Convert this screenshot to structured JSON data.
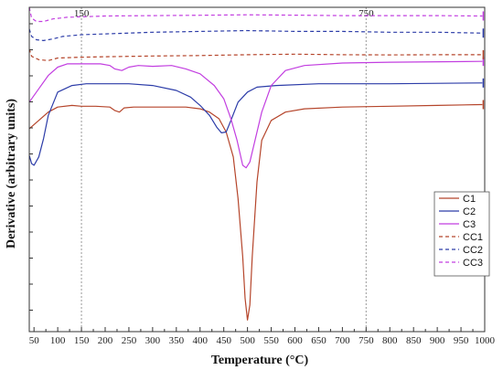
{
  "chart_data": {
    "type": "line",
    "title": "",
    "xlabel": "Temperature (°C)",
    "ylabel": "Derivative (arbitrary units)",
    "xlim": [
      40,
      1000
    ],
    "ylim": [
      -1.0,
      0.95
    ],
    "x_ticks": [
      50,
      100,
      150,
      200,
      250,
      300,
      350,
      400,
      450,
      500,
      550,
      600,
      650,
      700,
      750,
      800,
      850,
      900,
      950,
      1000
    ],
    "vertical_reference_lines": [
      {
        "x": 150,
        "label": "150"
      },
      {
        "x": 750,
        "label": "750"
      }
    ],
    "legend_position": "right",
    "grid": false,
    "series": [
      {
        "name": "C1",
        "color": "#b5452b",
        "dash": "solid",
        "points": [
          [
            40,
            0.22
          ],
          [
            60,
            0.27
          ],
          [
            80,
            0.32
          ],
          [
            100,
            0.35
          ],
          [
            130,
            0.36
          ],
          [
            150,
            0.355
          ],
          [
            180,
            0.355
          ],
          [
            210,
            0.35
          ],
          [
            220,
            0.33
          ],
          [
            230,
            0.32
          ],
          [
            240,
            0.345
          ],
          [
            260,
            0.35
          ],
          [
            300,
            0.35
          ],
          [
            340,
            0.35
          ],
          [
            370,
            0.35
          ],
          [
            400,
            0.34
          ],
          [
            420,
            0.32
          ],
          [
            440,
            0.28
          ],
          [
            455,
            0.2
          ],
          [
            470,
            0.05
          ],
          [
            480,
            -0.2
          ],
          [
            490,
            -0.55
          ],
          [
            495,
            -0.8
          ],
          [
            500,
            -0.93
          ],
          [
            505,
            -0.84
          ],
          [
            510,
            -0.55
          ],
          [
            520,
            -0.1
          ],
          [
            530,
            0.15
          ],
          [
            550,
            0.27
          ],
          [
            580,
            0.32
          ],
          [
            620,
            0.34
          ],
          [
            700,
            0.35
          ],
          [
            800,
            0.355
          ],
          [
            900,
            0.36
          ],
          [
            990,
            0.365
          ],
          [
            995,
            0.365
          ]
        ]
      },
      {
        "name": "C2",
        "color": "#2c3ca8",
        "dash": "solid",
        "points": [
          [
            40,
            0.06
          ],
          [
            45,
            0.01
          ],
          [
            50,
            0.0
          ],
          [
            60,
            0.05
          ],
          [
            70,
            0.16
          ],
          [
            80,
            0.3
          ],
          [
            100,
            0.44
          ],
          [
            130,
            0.48
          ],
          [
            160,
            0.49
          ],
          [
            200,
            0.49
          ],
          [
            250,
            0.49
          ],
          [
            300,
            0.48
          ],
          [
            350,
            0.45
          ],
          [
            380,
            0.41
          ],
          [
            400,
            0.36
          ],
          [
            420,
            0.3
          ],
          [
            435,
            0.23
          ],
          [
            445,
            0.195
          ],
          [
            455,
            0.2
          ],
          [
            465,
            0.27
          ],
          [
            480,
            0.38
          ],
          [
            500,
            0.44
          ],
          [
            520,
            0.47
          ],
          [
            560,
            0.48
          ],
          [
            650,
            0.49
          ],
          [
            800,
            0.49
          ],
          [
            990,
            0.495
          ],
          [
            995,
            0.495
          ]
        ]
      },
      {
        "name": "C3",
        "color": "#c23ee0",
        "dash": "solid",
        "points": [
          [
            40,
            0.38
          ],
          [
            60,
            0.46
          ],
          [
            80,
            0.54
          ],
          [
            100,
            0.59
          ],
          [
            120,
            0.61
          ],
          [
            150,
            0.61
          ],
          [
            190,
            0.61
          ],
          [
            210,
            0.6
          ],
          [
            220,
            0.58
          ],
          [
            235,
            0.57
          ],
          [
            250,
            0.59
          ],
          [
            270,
            0.6
          ],
          [
            300,
            0.595
          ],
          [
            340,
            0.6
          ],
          [
            370,
            0.58
          ],
          [
            400,
            0.55
          ],
          [
            430,
            0.48
          ],
          [
            450,
            0.4
          ],
          [
            465,
            0.28
          ],
          [
            478,
            0.15
          ],
          [
            490,
            0.0
          ],
          [
            497,
            -0.015
          ],
          [
            505,
            0.02
          ],
          [
            515,
            0.14
          ],
          [
            530,
            0.32
          ],
          [
            550,
            0.48
          ],
          [
            580,
            0.57
          ],
          [
            620,
            0.6
          ],
          [
            700,
            0.615
          ],
          [
            800,
            0.62
          ],
          [
            990,
            0.625
          ],
          [
            995,
            0.625
          ]
        ]
      },
      {
        "name": "CC1",
        "color": "#b5452b",
        "dash": "dashed",
        "points": [
          [
            40,
            0.7
          ],
          [
            45,
            0.655
          ],
          [
            60,
            0.635
          ],
          [
            80,
            0.63
          ],
          [
            100,
            0.645
          ],
          [
            150,
            0.65
          ],
          [
            200,
            0.653
          ],
          [
            300,
            0.657
          ],
          [
            400,
            0.66
          ],
          [
            500,
            0.665
          ],
          [
            600,
            0.668
          ],
          [
            700,
            0.665
          ],
          [
            800,
            0.664
          ],
          [
            900,
            0.665
          ],
          [
            990,
            0.665
          ],
          [
            995,
            0.665
          ]
        ]
      },
      {
        "name": "CC2",
        "color": "#2c3ca8",
        "dash": "dashed",
        "points": [
          [
            40,
            0.82
          ],
          [
            45,
            0.775
          ],
          [
            55,
            0.755
          ],
          [
            70,
            0.75
          ],
          [
            90,
            0.76
          ],
          [
            110,
            0.775
          ],
          [
            150,
            0.785
          ],
          [
            200,
            0.79
          ],
          [
            300,
            0.8
          ],
          [
            400,
            0.805
          ],
          [
            500,
            0.81
          ],
          [
            600,
            0.805
          ],
          [
            700,
            0.805
          ],
          [
            800,
            0.8
          ],
          [
            900,
            0.8
          ],
          [
            990,
            0.795
          ],
          [
            995,
            0.795
          ]
        ]
      },
      {
        "name": "CC3",
        "color": "#c23ee0",
        "dash": "dashed",
        "points": [
          [
            40,
            0.95
          ],
          [
            45,
            0.885
          ],
          [
            55,
            0.865
          ],
          [
            70,
            0.865
          ],
          [
            90,
            0.88
          ],
          [
            120,
            0.89
          ],
          [
            150,
            0.893
          ],
          [
            200,
            0.898
          ],
          [
            300,
            0.9
          ],
          [
            400,
            0.902
          ],
          [
            500,
            0.905
          ],
          [
            600,
            0.903
          ],
          [
            700,
            0.9
          ],
          [
            800,
            0.9
          ],
          [
            900,
            0.9
          ],
          [
            990,
            0.898
          ],
          [
            995,
            0.898
          ]
        ]
      }
    ]
  }
}
